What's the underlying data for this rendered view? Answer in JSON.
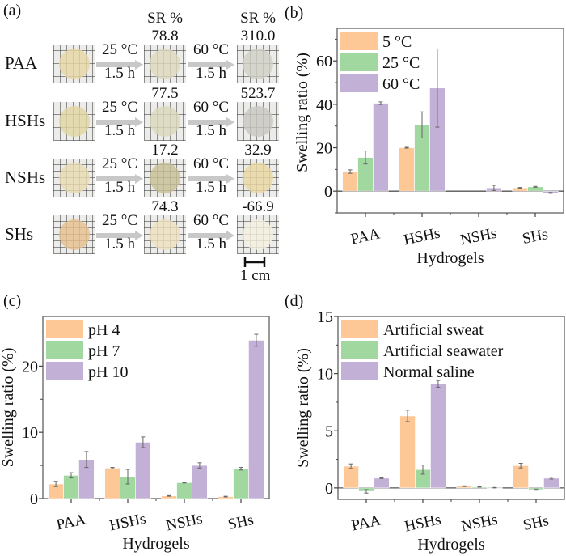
{
  "panel_a": {
    "label": "(a)",
    "sr_header": "SR %",
    "scale_bar_label": "1 cm",
    "rows": [
      {
        "name": "PAA",
        "step1": {
          "temp": "25 °C",
          "time": "1.5 h"
        },
        "step2": {
          "temp": "60 °C",
          "time": "1.5 h"
        },
        "sr_after_25": "78.8",
        "sr_after_60": "310.0",
        "photo_colors": [
          "#e6d7a6",
          "#ddd8bd",
          "#cfcfc6"
        ]
      },
      {
        "name": "HSHs",
        "step1": {
          "temp": "25 °C",
          "time": "1.5 h"
        },
        "step2": {
          "temp": "60 °C",
          "time": "1.5 h"
        },
        "sr_after_25": "77.5",
        "sr_after_60": "523.7",
        "photo_colors": [
          "#e2d5a2",
          "#dcd8bd",
          "#c8c7c2"
        ]
      },
      {
        "name": "NSHs",
        "step1": {
          "temp": "25 °C",
          "time": "1.5 h"
        },
        "step2": {
          "temp": "60 °C",
          "time": "1.5 h"
        },
        "sr_after_25": "17.2",
        "sr_after_60": "32.9",
        "photo_colors": [
          "#e9dcb2",
          "#c7bf96",
          "#ead8a4"
        ]
      },
      {
        "name": "SHs",
        "step1": {
          "temp": "25 °C",
          "time": "1.5 h"
        },
        "step2": {
          "temp": "60 °C",
          "time": "1.5 h"
        },
        "sr_after_25": "74.3",
        "sr_after_60": "-66.9",
        "photo_colors": [
          "#e6c08d",
          "#eedfbf",
          "#f4efdf"
        ]
      }
    ]
  },
  "colors": {
    "series1": "#fdc896",
    "series2": "#a0d8a0",
    "series3": "#c2b0d6",
    "axis": "#555555",
    "error": "#666666"
  },
  "chart_data": [
    {
      "panel": "(b)",
      "type": "bar",
      "title": "",
      "xlabel": "Hydrogels",
      "ylabel": "Swelling ratio (%)",
      "categories": [
        "PAA",
        "HSHs",
        "NSHs",
        "SHs"
      ],
      "ylim": [
        -10,
        75
      ],
      "yticks": [
        0,
        20,
        40,
        60
      ],
      "yminor": [
        -10,
        10,
        30,
        50,
        70
      ],
      "legend_position": "top-left",
      "series": [
        {
          "name": "5 °C",
          "values": [
            9.0,
            20.0,
            0.0,
            1.5
          ],
          "errors": [
            0.8,
            0.2,
            0.0,
            0.2
          ]
        },
        {
          "name": "25 °C",
          "values": [
            15.5,
            30.5,
            0.0,
            2.0
          ],
          "errors": [
            3.0,
            6.0,
            0.0,
            0.2
          ]
        },
        {
          "name": "60 °C",
          "values": [
            40.5,
            47.5,
            1.5,
            -0.8
          ],
          "errors": [
            0.6,
            18.0,
            1.2,
            0.2
          ]
        }
      ]
    },
    {
      "panel": "(c)",
      "type": "bar",
      "title": "",
      "xlabel": "Hydrogels",
      "ylabel": "Swelling ratio (%)",
      "categories": [
        "PAA",
        "HSHs",
        "NSHs",
        "SHs"
      ],
      "ylim": [
        0,
        27.5
      ],
      "yticks": [
        0,
        10,
        20
      ],
      "yminor": [
        5,
        15,
        25
      ],
      "legend_position": "top-left",
      "series": [
        {
          "name": "pH 4",
          "values": [
            2.2,
            4.6,
            0.4,
            0.3
          ],
          "errors": [
            0.4,
            0.1,
            0.05,
            0.05
          ]
        },
        {
          "name": "pH 7",
          "values": [
            3.5,
            3.3,
            2.4,
            4.5
          ],
          "errors": [
            0.4,
            1.1,
            0.05,
            0.2
          ]
        },
        {
          "name": "pH 10",
          "values": [
            5.9,
            8.5,
            5.0,
            23.9
          ],
          "errors": [
            1.2,
            0.8,
            0.4,
            0.9
          ]
        }
      ]
    },
    {
      "panel": "(d)",
      "type": "bar",
      "title": "",
      "xlabel": "Hydrogels",
      "ylabel": "Swelling ratio (%)",
      "categories": [
        "PAA",
        "HSHs",
        "NSHs",
        "SHs"
      ],
      "ylim": [
        -1,
        15
      ],
      "yticks": [
        0,
        5,
        10,
        15
      ],
      "yminor": [
        2.5,
        7.5,
        12.5
      ],
      "legend_position": "top-left",
      "series": [
        {
          "name": "Artificial sweat",
          "values": [
            1.9,
            6.3,
            0.15,
            1.95
          ],
          "errors": [
            0.2,
            0.5,
            0.03,
            0.2
          ]
        },
        {
          "name": "Artificial seawater",
          "values": [
            -0.3,
            1.6,
            0.08,
            -0.15
          ],
          "errors": [
            0.15,
            0.4,
            0.02,
            0.05
          ]
        },
        {
          "name": "Normal saline",
          "values": [
            0.85,
            9.1,
            0.02,
            0.85
          ],
          "errors": [
            0.03,
            0.3,
            0.02,
            0.08
          ]
        }
      ]
    }
  ]
}
